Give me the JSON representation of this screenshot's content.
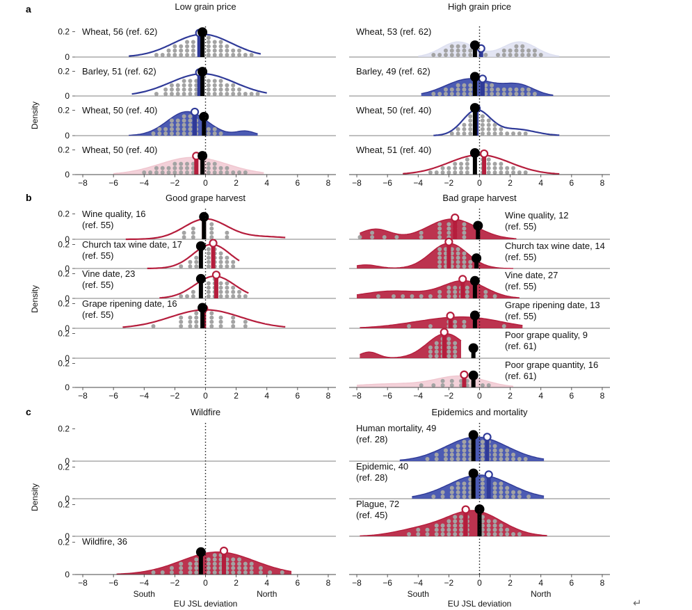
{
  "figure": {
    "x_ticks": [
      -8,
      -6,
      -4,
      -2,
      0,
      2,
      4,
      6,
      8
    ],
    "y_ticks": [
      0,
      0.2
    ],
    "xlabel": "EU JSL deviation",
    "ylabel": "Density",
    "south_label": "South",
    "north_label": "North",
    "return_glyph": "↵",
    "colors": {
      "red": "#b51d3c",
      "red_fill": "#b51d3c",
      "pink_fill": "#f0c6cf",
      "blue": "#2f3a98",
      "blue_fill": "#3949ab",
      "light_fill": "#dcdff0",
      "dots": "#a3a3a3",
      "marker": "#000000"
    }
  },
  "chart_data": [
    {
      "type": "area",
      "panel": "a",
      "title": "Low grain price",
      "xlim": [
        -8.5,
        8.5
      ],
      "ylim": [
        0,
        0.22
      ],
      "series": [
        {
          "label": "Wheat, 56 (ref. 62)",
          "color": "blue",
          "fill": "none",
          "range": [
            -5,
            3.6
          ],
          "modes": [
            [
              -0.2,
              1.9,
              0.18
            ]
          ],
          "mean": -0.4,
          "marker": -0.2,
          "dots": [
            -4.8,
            -4.4,
            -4,
            -3.6,
            -3.2,
            -2.8,
            -2.4,
            -2,
            -1.6,
            -1.2,
            -0.8,
            0.2,
            0.6,
            1,
            1.4,
            1.8,
            2.2,
            2.6,
            3,
            3.4
          ]
        },
        {
          "label": "Barley, 51 (ref. 62)",
          "color": "blue",
          "fill": "none",
          "range": [
            -4.8,
            4
          ],
          "modes": [
            [
              -0.2,
              2.1,
              0.18
            ]
          ],
          "mean": -0.4,
          "marker": -0.2,
          "dots": [
            -4.6,
            -4,
            -3.2,
            -2.6,
            -2.2,
            -1.8,
            -1.4,
            -1,
            -0.6,
            0.2,
            0.6,
            1,
            1.4,
            1.8,
            2.2,
            2.6,
            3,
            3.4,
            4
          ]
        },
        {
          "label": "Wheat, 50 (ref. 40)",
          "color": "blue",
          "fill": "blue_fill",
          "range": [
            -5,
            3.4
          ],
          "modes": [
            [
              -1.2,
              1.3,
              0.19
            ],
            [
              2.6,
              0.6,
              0.035
            ]
          ],
          "mean": -0.7,
          "marker": -0.1,
          "dots": [
            -4.6,
            -4.2,
            -3.8,
            -3.4,
            -3,
            -2.6,
            -2.2,
            -1.8,
            -1.4,
            -1,
            -0.6,
            0.2,
            0.6,
            1,
            1.4,
            1.8,
            2.2,
            2.6,
            3
          ]
        },
        {
          "label": "Wheat, 50 (ref. 40)",
          "color": "pink_fill",
          "fill": "pink_fill",
          "range": [
            -6,
            3.8
          ],
          "modes": [
            [
              -0.8,
              2.2,
              0.14
            ]
          ],
          "mean": -0.6,
          "marker": -0.2,
          "dots": [
            -5.8,
            -5.2,
            -4.8,
            -4.4,
            -4,
            -3.6,
            -3.2,
            -2.8,
            -2.4,
            -2,
            -1.6,
            -1.2,
            -0.8,
            0.2,
            0.6,
            1,
            1.4,
            1.8,
            2.2,
            2.6,
            3,
            3.4
          ]
        }
      ]
    },
    {
      "type": "area",
      "panel": "a",
      "title": "High grain price",
      "xlim": [
        -8.5,
        8.5
      ],
      "ylim": [
        0,
        0.22
      ],
      "series": [
        {
          "label": "Wheat, 53 (ref. 62)",
          "color": "light_fill",
          "fill": "light_fill",
          "range": [
            -4,
            5.2
          ],
          "modes": [
            [
              -1.4,
              1.1,
              0.12
            ],
            [
              2.6,
              1.1,
              0.12
            ]
          ],
          "mean": 0.1,
          "marker": -0.3,
          "dots": [
            -3.6,
            -3,
            -2.6,
            -2.2,
            -1.8,
            -1.4,
            -1,
            -0.6,
            0.4,
            1.2,
            1.6,
            2,
            2.4,
            2.8,
            3.2,
            3.6,
            4
          ]
        },
        {
          "label": "Barley, 49 (ref. 62)",
          "color": "blue",
          "fill": "blue_fill",
          "range": [
            -3.8,
            4.8
          ],
          "modes": [
            [
              -0.6,
              1.6,
              0.14
            ],
            [
              2.6,
              1,
              0.08
            ]
          ],
          "mean": 0.2,
          "marker": -0.3,
          "dots": [
            -3.4,
            -3,
            -2.6,
            -2.2,
            -1.8,
            -1.4,
            -1,
            -0.6,
            0.4,
            0.8,
            1.2,
            1.6,
            2,
            2.4,
            2.8,
            3.2,
            3.6,
            4.2
          ]
        },
        {
          "label": "Wheat, 50 (ref. 40)",
          "color": "blue",
          "fill": "none",
          "range": [
            -3,
            5.2
          ],
          "modes": [
            [
              -0.2,
              0.9,
              0.2
            ],
            [
              2.4,
              1.2,
              0.05
            ]
          ],
          "mean": -0.2,
          "marker": -0.3,
          "dots": [
            -2.6,
            -2.2,
            -1.8,
            -1.4,
            -1,
            -0.6,
            0.2,
            0.6,
            1,
            1.4,
            1.8,
            2.2,
            2.6,
            3,
            3.4,
            3.8
          ]
        },
        {
          "label": "Wheat, 51 (ref. 40)",
          "color": "red",
          "fill": "none",
          "range": [
            -5,
            5.2
          ],
          "modes": [
            [
              0,
              2,
              0.16
            ]
          ],
          "mean": 0.3,
          "marker": -0.3,
          "dots": [
            -4.8,
            -4.4,
            -4,
            -3.6,
            -3.2,
            -2.8,
            -2.4,
            -2,
            -1.6,
            -1.2,
            -0.8,
            0.2,
            0.6,
            1,
            1.4,
            1.8,
            2.2,
            2.6,
            3,
            3.4,
            4,
            4.6
          ]
        }
      ]
    },
    {
      "type": "area",
      "panel": "b",
      "title": "Good grape harvest",
      "xlim": [
        -8.5,
        8.5
      ],
      "ylim": [
        0,
        0.22
      ],
      "series": [
        {
          "label": "Wine quality, 16",
          "label2": "(ref. 55)",
          "color": "red",
          "fill": "none",
          "range": [
            -5.2,
            5.2
          ],
          "modes": [
            [
              0,
              1.4,
              0.16
            ],
            [
              3.8,
              1.6,
              0.02
            ]
          ],
          "mean": -0.1,
          "marker": -0.1,
          "dots": [
            -5.2,
            -1.4,
            -0.8,
            0.4,
            1.4,
            3.2,
            5.2
          ]
        },
        {
          "label": "Church tax wine date, 17",
          "label2": "(ref. 55)",
          "color": "red",
          "fill": "none",
          "range": [
            -3.8,
            2.2
          ],
          "modes": [
            [
              0.4,
              1.2,
              0.2
            ]
          ],
          "mean": 0.5,
          "marker": -0.3,
          "dots": [
            -3.4,
            -2.2,
            -1.6,
            -1,
            -0.6,
            0.2,
            0.6,
            1,
            1.4,
            1.8
          ]
        },
        {
          "label": "Vine date, 23",
          "label2": "(ref. 55)",
          "color": "red",
          "fill": "none",
          "range": [
            -3,
            2.8
          ],
          "modes": [
            [
              0.6,
              1.3,
              0.18
            ]
          ],
          "mean": 0.7,
          "marker": -0.3,
          "dots": [
            -3,
            -2.4,
            -2,
            -1.6,
            -1.2,
            -0.8,
            0.2,
            0.6,
            1,
            1.4,
            1.8,
            2.2,
            2.6
          ]
        },
        {
          "label": "Grape ripening date, 16",
          "label2": "(ref. 55)",
          "color": "red",
          "fill": "none",
          "range": [
            -5.4,
            5.2
          ],
          "modes": [
            [
              0,
              2.3,
              0.15
            ]
          ],
          "mean": -0.1,
          "marker": -0.2,
          "dots": [
            -5.4,
            -3.4,
            -1.6,
            -1,
            -0.6,
            0.4,
            1,
            1.8,
            2.6,
            5.2
          ]
        }
      ]
    },
    {
      "type": "area",
      "panel": "b",
      "title": "Bad grape harvest",
      "xlim": [
        -8.5,
        8.5
      ],
      "ylim": [
        0,
        0.22
      ],
      "series": [
        {
          "label": "Wine quality, 12",
          "label2": "(ref. 55)",
          "color": "red",
          "fill": "red_fill",
          "range": [
            -7.8,
            2.4
          ],
          "modes": [
            [
              -1.8,
              1.6,
              0.16
            ],
            [
              -6.8,
              1,
              0.08
            ]
          ],
          "mean": -1.6,
          "marker": -0.1,
          "dots": [
            -7.8,
            -7,
            -6.2,
            -5.4,
            -3.8,
            -2.6,
            -2,
            -1.6,
            -1,
            1.4
          ]
        },
        {
          "label": "Church tax wine date, 14",
          "label2": "(ref. 55)",
          "color": "red",
          "fill": "red_fill",
          "range": [
            -8,
            2.2
          ],
          "modes": [
            [
              -2,
              1.2,
              0.21
            ],
            [
              -7.4,
              0.8,
              0.03
            ]
          ],
          "mean": -2,
          "marker": -0.2,
          "dots": [
            -2.6,
            -2.2,
            -1.8,
            -1.4,
            -1,
            -0.6,
            2.2
          ]
        },
        {
          "label": "Vine date, 27",
          "label2": "(ref. 55)",
          "color": "red",
          "fill": "red_fill",
          "range": [
            -8,
            2.6
          ],
          "modes": [
            [
              -1,
              1.4,
              0.14
            ],
            [
              -5.6,
              2,
              0.06
            ]
          ],
          "mean": -1.1,
          "marker": -0.3,
          "dots": [
            -7.8,
            -6.6,
            -5.6,
            -5,
            -4.4,
            -3.8,
            -3.2,
            -2.6,
            -2,
            -1.6,
            -1.2,
            -0.8,
            0.4,
            1,
            1.6,
            2.2
          ]
        },
        {
          "label": "Grape ripening date, 13",
          "label2": "(ref. 55)",
          "color": "red",
          "fill": "red_fill",
          "range": [
            -7.8,
            2.8
          ],
          "modes": [
            [
              -2.6,
              2.4,
              0.06
            ],
            [
              0,
              2,
              0.05
            ]
          ],
          "mean": -1.9,
          "marker": -0.3,
          "dots": [
            -7.8,
            -6.6,
            -5.6,
            -4.6,
            -3.2,
            -2,
            -1.6,
            -1,
            1.6,
            2.8
          ]
        },
        {
          "label": "Poor grape quality, 9",
          "label2": "(ref. 61)",
          "color": "red",
          "fill": "red_fill",
          "range": [
            -7.8,
            -1.2
          ],
          "modes": [
            [
              -2.2,
              1.2,
              0.2
            ],
            [
              -7.2,
              0.6,
              0.05
            ]
          ],
          "mean": -2.3,
          "marker": -0.4,
          "dots": [
            -3.2,
            -2.8,
            -2.4,
            -2,
            -1.6
          ]
        },
        {
          "label": "Poor grape quantity, 16",
          "label2": "(ref. 61)",
          "color": "pink_fill",
          "fill": "pink_fill",
          "range": [
            -8,
            2.2
          ],
          "modes": [
            [
              -1.2,
              1.6,
              0.09
            ],
            [
              -5.6,
              2.4,
              0.03
            ]
          ],
          "mean": -1,
          "marker": -0.4,
          "dots": [
            -7.8,
            -7,
            -6.6,
            -5.8,
            -4.6,
            -3.8,
            -3,
            -2.4,
            -1.8,
            -1.2,
            -0.8,
            0.2,
            0.6,
            1.4,
            2
          ]
        }
      ]
    },
    {
      "type": "area",
      "panel": "c",
      "title": "Wildfire",
      "xlim": [
        -8.5,
        8.5
      ],
      "ylim": [
        0,
        0.22
      ],
      "series": [
        {
          "empty": true
        },
        {
          "empty": true
        },
        {
          "empty": true
        },
        {
          "label": "Wildfire, 36",
          "color": "red",
          "fill": "red_fill",
          "range": [
            -5.8,
            5.6
          ],
          "modes": [
            [
              0.8,
              2.4,
              0.14
            ]
          ],
          "mean": 1.2,
          "marker": -0.3,
          "dots": [
            -5.4,
            -3.4,
            -2.8,
            -2.2,
            -1.6,
            -1,
            -0.6,
            0.2,
            0.6,
            1,
            1.4,
            1.8,
            2.2,
            2.6,
            3,
            3.6,
            4.2,
            5
          ]
        }
      ]
    },
    {
      "type": "area",
      "panel": "c",
      "title": "Epidemics and mortality",
      "xlim": [
        -8.5,
        8.5
      ],
      "ylim": [
        0,
        0.22
      ],
      "series": [
        {
          "label": "Human mortality, 49",
          "label2": "(ref. 28)",
          "color": "blue",
          "fill": "blue_fill",
          "range": [
            -5.2,
            4.2
          ],
          "modes": [
            [
              -0.2,
              2,
              0.15
            ]
          ],
          "mean": 0.5,
          "marker": -0.4,
          "dots": [
            -4.6,
            -4,
            -3.4,
            -2.8,
            -2.2,
            -1.8,
            -1.4,
            -1,
            -0.6,
            0.2,
            0.6,
            1,
            1.4,
            1.8,
            2.2,
            2.6,
            3,
            3.6,
            4
          ]
        },
        {
          "label": "Epidemic, 40",
          "label2": "(ref. 28)",
          "color": "blue",
          "fill": "blue_fill",
          "range": [
            -4.4,
            4.2
          ],
          "modes": [
            [
              0,
              2,
              0.15
            ]
          ],
          "mean": 0.6,
          "marker": -0.4,
          "dots": [
            -4.2,
            -3.6,
            -3,
            -2.4,
            -1.8,
            -1.4,
            -1,
            -0.6,
            0.2,
            0.6,
            1,
            1.4,
            1.8,
            2.2,
            2.6,
            3.2,
            3.8
          ]
        },
        {
          "label": "Plague, 72",
          "label2": "(ref. 45)",
          "color": "red",
          "fill": "red_fill",
          "range": [
            -7.8,
            4.4
          ],
          "modes": [
            [
              -0.4,
              1.8,
              0.16
            ],
            [
              -4,
              1.6,
              0.04
            ]
          ],
          "mean": -0.9,
          "marker": 0,
          "dots": [
            -7.6,
            -6.4,
            -5.4,
            -4.6,
            -4,
            -3.4,
            -2.8,
            -2.4,
            -2,
            -1.6,
            -1.2,
            -0.8,
            0.2,
            0.6,
            1,
            1.4,
            1.8,
            2.2,
            2.6,
            3.2,
            3.8,
            4.4
          ]
        },
        {
          "empty": true
        }
      ]
    }
  ]
}
